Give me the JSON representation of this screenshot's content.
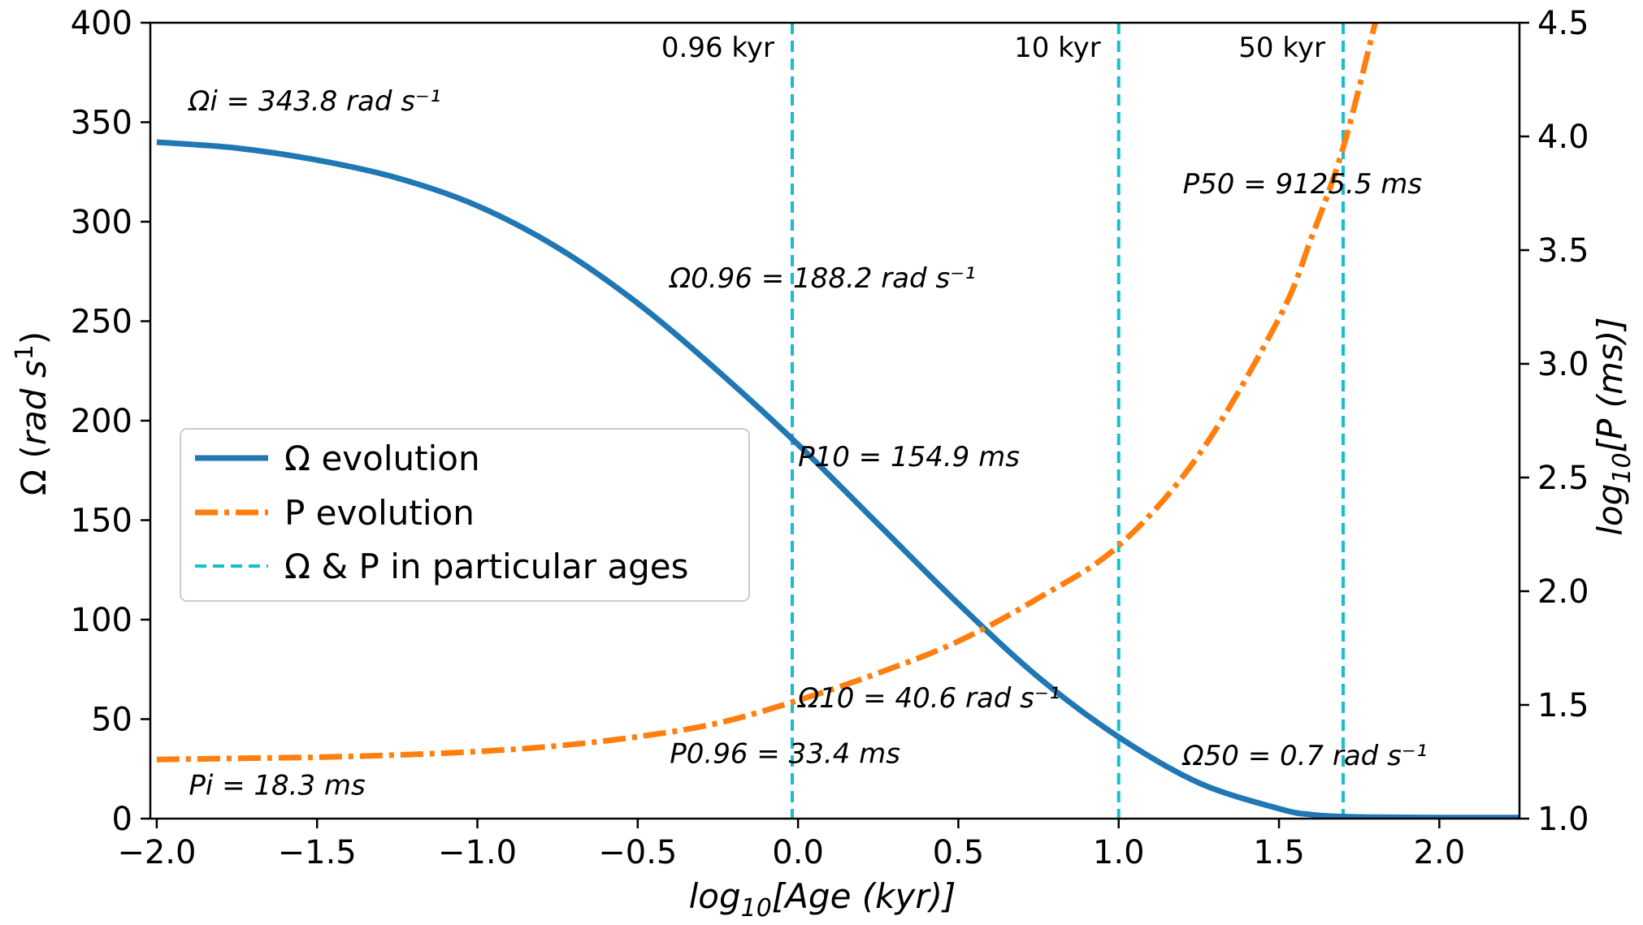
{
  "chart_data": {
    "type": "line",
    "xlabel": "log₁₀[Age (kyr)]",
    "ylabel_left": "Ω (rad s¹)",
    "ylabel_right": "log₁₀[P (ms)]",
    "xlim": [
      -2.02,
      2.25
    ],
    "ylim_left": [
      0,
      400
    ],
    "ylim_right": [
      1.0,
      4.5
    ],
    "x_ticks": [
      -2.0,
      -1.5,
      -1.0,
      -0.5,
      0.0,
      0.5,
      1.0,
      1.5,
      2.0
    ],
    "x_tick_labels": [
      "−2.0",
      "−1.5",
      "−1.0",
      "−0.5",
      "0.0",
      "0.5",
      "1.0",
      "1.5",
      "2.0"
    ],
    "y_left_ticks": [
      0,
      50,
      100,
      150,
      200,
      250,
      300,
      350,
      400
    ],
    "y_left_tick_labels": [
      "0",
      "50",
      "100",
      "150",
      "200",
      "250",
      "300",
      "350",
      "400"
    ],
    "y_right_ticks": [
      1.0,
      1.5,
      2.0,
      2.5,
      3.0,
      3.5,
      4.0,
      4.5
    ],
    "y_right_tick_labels": [
      "1.0",
      "1.5",
      "2.0",
      "2.5",
      "3.0",
      "3.5",
      "4.0",
      "4.5"
    ],
    "series": [
      {
        "name": "Ω evolution",
        "axis": "left",
        "color": "#1f77b4",
        "style": "solid",
        "x": [
          -2.0,
          -1.75,
          -1.5,
          -1.25,
          -1.0,
          -0.75,
          -0.5,
          -0.25,
          0.0,
          0.25,
          0.5,
          0.75,
          1.0,
          1.25,
          1.5,
          1.6,
          1.7,
          1.8,
          2.0,
          2.25
        ],
        "values": [
          340,
          337,
          331,
          322,
          308,
          287,
          259,
          225,
          188,
          148,
          108,
          71,
          41,
          18,
          5,
          2,
          1,
          0.7,
          0.5,
          0.5
        ]
      },
      {
        "name": "P evolution",
        "axis": "right",
        "color": "#ff7f0e",
        "style": "dashdot",
        "x": [
          -2.0,
          -1.75,
          -1.5,
          -1.25,
          -1.0,
          -0.75,
          -0.5,
          -0.25,
          0.0,
          0.25,
          0.5,
          0.75,
          1.0,
          1.25,
          1.5,
          1.6,
          1.7,
          1.8
        ],
        "values": [
          1.26,
          1.265,
          1.27,
          1.28,
          1.295,
          1.32,
          1.36,
          1.42,
          1.52,
          1.64,
          1.78,
          1.97,
          2.2,
          2.6,
          3.2,
          3.55,
          3.95,
          4.5
        ]
      }
    ],
    "vlines": [
      {
        "x": -0.018,
        "label": "0.96 kyr"
      },
      {
        "x": 1.0,
        "label": "10 kyr"
      },
      {
        "x": 1.7,
        "label": "50 kyr"
      }
    ],
    "vline_color": "#17becf",
    "annotations": [
      {
        "text": "Ωi = 343.8 rad s⁻¹",
        "x": -1.9,
        "y": 356,
        "axis": "left"
      },
      {
        "text": "Ω0.96 = 188.2 rad s⁻¹",
        "x": -0.4,
        "y": 267,
        "axis": "left"
      },
      {
        "text": "P10 = 154.9 ms",
        "x": 0.0,
        "y": 2.55,
        "axis": "right"
      },
      {
        "text": "P50 = 9125.5 ms",
        "x": 1.2,
        "y": 3.75,
        "axis": "right"
      },
      {
        "text": "Ω10 = 40.6 rad s⁻¹",
        "x": 0.0,
        "y": 56,
        "axis": "left"
      },
      {
        "text": "P0.96 = 33.4 ms",
        "x": -0.4,
        "y": 28,
        "axis": "left"
      },
      {
        "text": "Ω50 = 0.7 rad s⁻¹",
        "x": 1.2,
        "y": 27,
        "axis": "left"
      },
      {
        "text": "Pi = 18.3 ms",
        "x": -1.9,
        "y": 12,
        "axis": "left"
      }
    ],
    "legend": {
      "position": "center-left",
      "entries": [
        "Ω evolution",
        "P evolution",
        "Ω & P in particular ages"
      ]
    }
  }
}
